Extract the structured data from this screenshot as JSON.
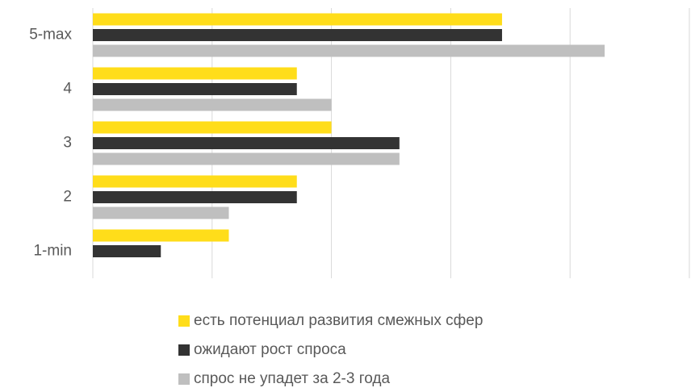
{
  "chart_data": {
    "type": "barh",
    "categories": [
      "5-max",
      "4",
      "3",
      "2",
      "1-min"
    ],
    "series": [
      {
        "name": "есть потенциал развития смежных сфер",
        "color": "#ffdd1a",
        "values": [
          34.3,
          17.1,
          20,
          17.1,
          11.4
        ]
      },
      {
        "name": "ожидают рост спроса",
        "color": "#333333",
        "values": [
          34.3,
          17.1,
          25.7,
          17.1,
          5.7
        ]
      },
      {
        "name": "спрос не упадет за 2-3 года",
        "color": "#bfbfbf",
        "values": [
          42.9,
          20,
          25.7,
          11.4,
          0
        ]
      }
    ],
    "xlim": [
      0,
      50
    ],
    "xticks": [
      0,
      10,
      20,
      30,
      40,
      50
    ],
    "grid": true,
    "legend": "bottom"
  }
}
